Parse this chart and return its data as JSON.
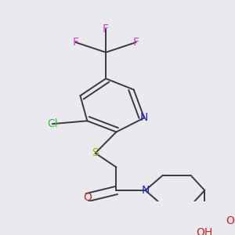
{
  "background_color": "#eaeaee",
  "bond_color": "#3a3a3a",
  "bond_width": 1.4,
  "fig_width": 3.0,
  "fig_height": 3.0,
  "dpi": 100,
  "xlim": [
    0,
    1
  ],
  "ylim": [
    0,
    1
  ]
}
